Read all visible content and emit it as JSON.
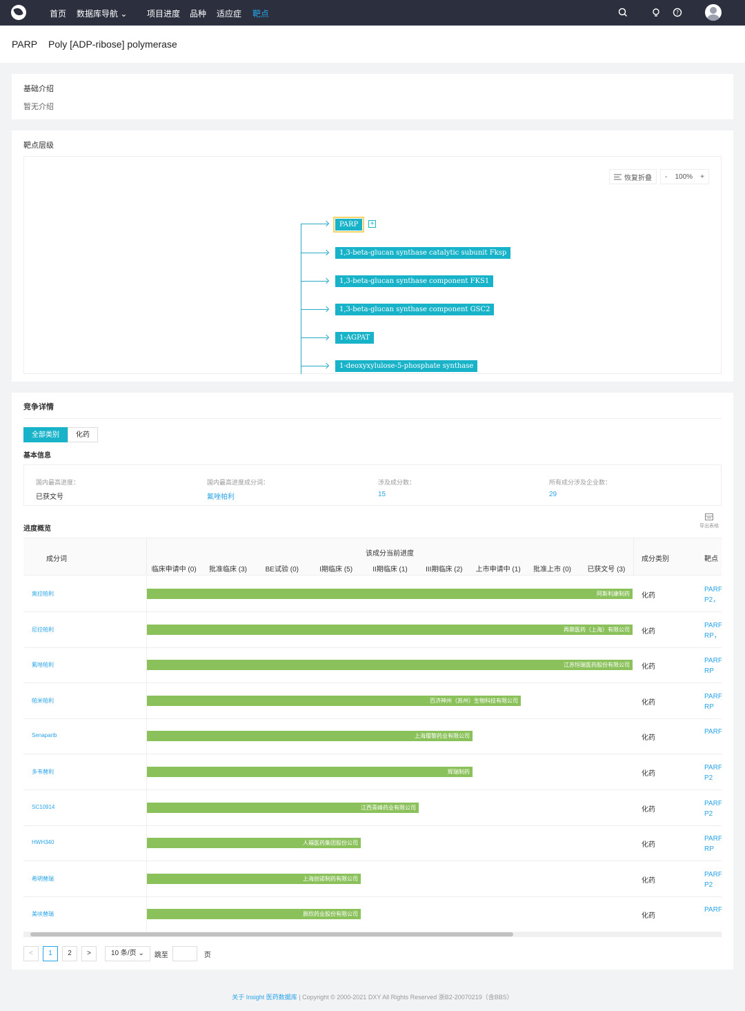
{
  "nav": {
    "items": [
      {
        "label": "首页"
      },
      {
        "label": "数据库导航 ⌄"
      },
      {
        "label": "项目进度"
      },
      {
        "label": "品种"
      },
      {
        "label": "适应症"
      },
      {
        "label": "靶点"
      }
    ]
  },
  "header": {
    "symbol": "PARP",
    "fullname": "Poly [ADP-ribose] polymerase"
  },
  "intro": {
    "title": "基础介绍",
    "text": "暂无介绍"
  },
  "hierarchy": {
    "title": "靶点层级",
    "restore_label": "恢复折叠",
    "zoom_minus": "-",
    "zoom_value": "100%",
    "zoom_plus": "+",
    "expander": "+",
    "nodes": [
      "PARP",
      "1,3-beta-glucan synthase catalytic subunit Fksp",
      "1,3-beta-glucan synthase component FKS1",
      "1,3-beta-glucan synthase component GSC2",
      "1-AGPAT",
      "1-deoxyxylulose-5-phosphate synthase"
    ]
  },
  "competition": {
    "title": "竞争详情",
    "tabs": [
      "全部类别",
      "化药"
    ],
    "basic_title": "基本信息",
    "info": [
      {
        "label": "国内最高进度：",
        "value": "已获文号"
      },
      {
        "label": "国内最高进度成分词：",
        "value": "氟唑帕利"
      },
      {
        "label": "涉及成分数：",
        "value": "15"
      },
      {
        "label": "所有成分涉及企业数：",
        "value": "29"
      }
    ],
    "progress_title": "进度概览",
    "export_label": "导出表格",
    "table": {
      "col_name": "成分词",
      "col_progress": "该成分当前进度",
      "col_type": "成分类别",
      "col_target": "靶点",
      "stages": [
        "临床申请中 (0)",
        "批准临床 (3)",
        "BE试验 (0)",
        "I期临床 (5)",
        "II期临床 (1)",
        "III期临床 (2)",
        "上市申请中 (1)",
        "批准上市 (0)",
        "已获文号 (3)"
      ],
      "rows": [
        {
          "name": "奥拉帕利",
          "company": "阿斯利康制药",
          "progress": 1.0,
          "type": "化药",
          "target1": "PARP",
          "target2": "P2，"
        },
        {
          "name": "尼拉帕利",
          "company": "再鼎医药（上海）有限公司",
          "progress": 1.0,
          "type": "化药",
          "target1": "PARP",
          "target2": "RP，"
        },
        {
          "name": "氟唑帕利",
          "company": "江苏恒瑞医药股份有限公司",
          "progress": 1.0,
          "type": "化药",
          "target1": "PARP",
          "target2": "RP"
        },
        {
          "name": "帕米帕利",
          "company": "百济神州（苏州）生物科技有限公司",
          "progress": 0.77,
          "type": "化药",
          "target1": "PARP",
          "target2": "RP"
        },
        {
          "name": "Senaparib",
          "company": "上海璎黎药业有限公司",
          "progress": 0.67,
          "type": "化药",
          "target1": "PARP",
          "target2": ""
        },
        {
          "name": "多韦替利",
          "company": "辉瑞制药",
          "progress": 0.67,
          "type": "化药",
          "target1": "PARP",
          "target2": "P2"
        },
        {
          "name": "SC10914",
          "company": "江西青峰药业有限公司",
          "progress": 0.56,
          "type": "化药",
          "target1": "PARP",
          "target2": "P2"
        },
        {
          "name": "HWH340",
          "company": "人福医药集团股份公司",
          "progress": 0.44,
          "type": "化药",
          "target1": "PARP",
          "target2": "RP"
        },
        {
          "name": "希明替瑞",
          "company": "上海创诺制药有限公司",
          "progress": 0.44,
          "type": "化药",
          "target1": "PARP",
          "target2": "P2"
        },
        {
          "name": "美呋替瑞",
          "company": "辰欣药业股份有限公司",
          "progress": 0.44,
          "type": "化药",
          "target1": "PARP",
          "target2": ""
        }
      ]
    }
  },
  "pager": {
    "prev": "<",
    "pages": [
      "1",
      "2"
    ],
    "next": ">",
    "page_size": "10 条/页 ⌄",
    "jump_label": "跳至",
    "page_unit": "页"
  },
  "footer": {
    "link": "关于 Insight 医药数据库",
    "sep": "|",
    "text": "Copyright © 2000-2021 DXY All Rights Reserved 浙B2-20070219（含BBS）"
  },
  "colors": {
    "nav_bg": "#2b2f3e",
    "accent": "#28a3e7",
    "node": "#18b3c9",
    "bar": "#8bc15b"
  }
}
